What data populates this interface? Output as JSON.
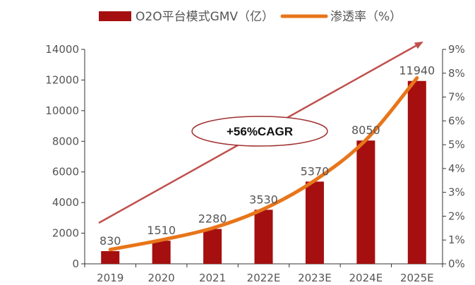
{
  "chart_data": {
    "type": "bar",
    "categories": [
      "2019",
      "2020",
      "2021",
      "2022E",
      "2023E",
      "2024E",
      "2025E"
    ],
    "series": [
      {
        "name": "O2O平台模式GMV（亿）",
        "type": "bar",
        "axis": "left",
        "values": [
          830,
          1510,
          2280,
          3530,
          5370,
          8050,
          11940
        ],
        "color": "#a50f0f"
      },
      {
        "name": "渗透率（%）",
        "type": "line",
        "axis": "right",
        "values": [
          0.6,
          1.0,
          1.5,
          2.3,
          3.5,
          5.2,
          7.8
        ],
        "color": "#e8751a"
      }
    ],
    "data_labels": [
      "830",
      "1510",
      "2280",
      "3530",
      "5370",
      "8050",
      "11940"
    ],
    "ylim_left": [
      0,
      14000
    ],
    "yticks_left": [
      "0",
      "2000",
      "4000",
      "6000",
      "8000",
      "10000",
      "12000",
      "14000"
    ],
    "ylim_right": [
      0,
      9
    ],
    "yticks_right": [
      "0%",
      "1%",
      "2%",
      "3%",
      "4%",
      "5%",
      "6%",
      "7%",
      "8%",
      "9%"
    ],
    "annotation": {
      "text": "+56%CAGR",
      "arrow_color": "#c0504d"
    },
    "legend_position": "top-center",
    "grid": false
  }
}
